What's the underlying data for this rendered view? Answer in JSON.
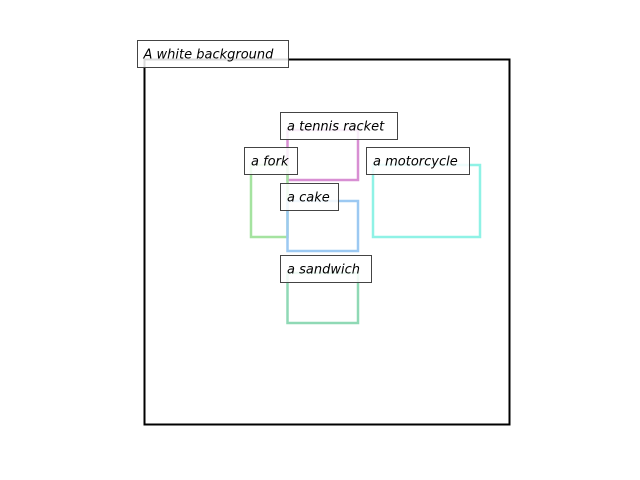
{
  "background_label": "A white background",
  "boxes": [
    {
      "label": "a tennis racket",
      "color": "#d88fd3"
    },
    {
      "label": "a fork",
      "color": "#a5e3a0"
    },
    {
      "label": "a motorcycle",
      "color": "#8ff2e6"
    },
    {
      "label": "a cake",
      "color": "#9cc9f2"
    },
    {
      "label": "a sandwich",
      "color": "#8fd9b5"
    }
  ]
}
